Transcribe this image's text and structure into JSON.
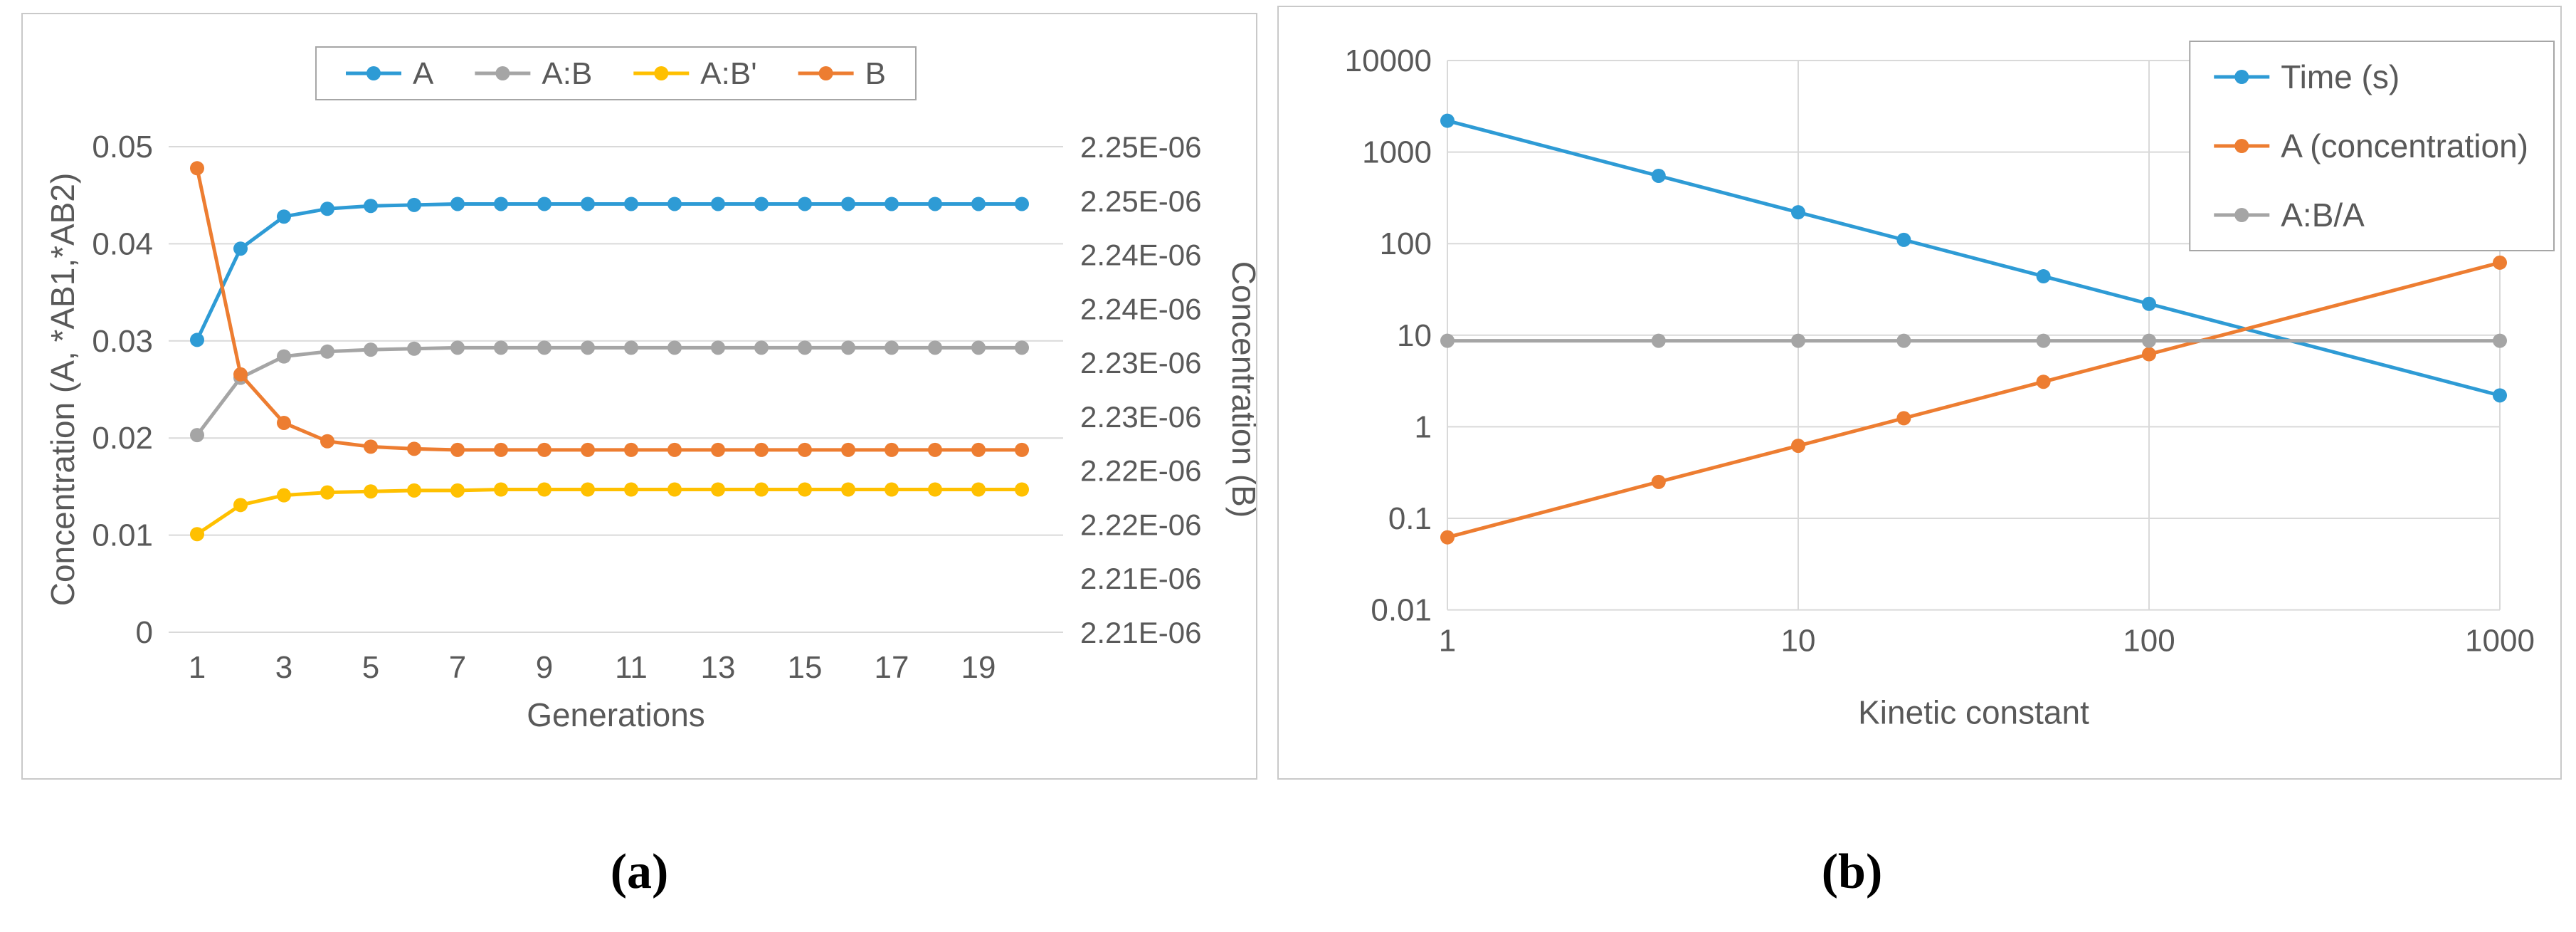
{
  "captions": {
    "a": "(a)",
    "b": "(b)"
  },
  "colors": {
    "blue": "#2E9BD5",
    "orange": "#ED7D31",
    "gray": "#A5A5A5",
    "yellow": "#FFC000",
    "text": "#595959",
    "grid": "#D9D9D9",
    "panel_border": "#C9C9C9",
    "legend_border": "#A6A6A6"
  },
  "chart_data": [
    {
      "id": "chart-a",
      "type": "line",
      "x": [
        1,
        2,
        3,
        4,
        5,
        6,
        7,
        8,
        9,
        10,
        11,
        12,
        13,
        14,
        15,
        16,
        17,
        18,
        19,
        20
      ],
      "x_ticks": [
        1,
        3,
        5,
        7,
        9,
        11,
        13,
        15,
        17,
        19
      ],
      "xlabel": "Generations",
      "grid": "horizontal",
      "legend_position": "top-center",
      "y_left": {
        "title": "Concentration (A, *AB1,*AB2)",
        "min": 0,
        "max": 0.05,
        "ticks": [
          "0.05",
          "0.04",
          "0.03",
          "0.02",
          "0.01",
          "0"
        ]
      },
      "y_right": {
        "title": "Concentration (B)",
        "min": 2.2075e-06,
        "max": 2.2525e-06,
        "ticks": [
          "2.25E-06",
          "2.25E-06",
          "2.24E-06",
          "2.24E-06",
          "2.23E-06",
          "2.23E-06",
          "2.22E-06",
          "2.22E-06",
          "2.21E-06",
          "2.21E-06"
        ]
      },
      "series": [
        {
          "name": "A",
          "color_key": "blue",
          "axis": "left",
          "values": [
            0.0301,
            0.0395,
            0.0428,
            0.0436,
            0.0439,
            0.044,
            0.0441,
            0.0441,
            0.0441,
            0.0441,
            0.0441,
            0.0441,
            0.0441,
            0.0441,
            0.0441,
            0.0441,
            0.0441,
            0.0441,
            0.0441,
            0.0441
          ]
        },
        {
          "name": "A:B",
          "color_key": "gray",
          "axis": "left",
          "values": [
            0.0203,
            0.0262,
            0.0284,
            0.0289,
            0.0291,
            0.0292,
            0.0293,
            0.0293,
            0.0293,
            0.0293,
            0.0293,
            0.0293,
            0.0293,
            0.0293,
            0.0293,
            0.0293,
            0.0293,
            0.0293,
            0.0293,
            0.0293
          ]
        },
        {
          "name": "A:B'",
          "color_key": "yellow",
          "axis": "left",
          "values": [
            0.0101,
            0.0131,
            0.0141,
            0.0144,
            0.0145,
            0.0146,
            0.0146,
            0.0147,
            0.0147,
            0.0147,
            0.0147,
            0.0147,
            0.0147,
            0.0147,
            0.0147,
            0.0147,
            0.0147,
            0.0147,
            0.0147,
            0.0147
          ]
        },
        {
          "name": "B",
          "color_key": "orange",
          "axis": "right",
          "values": [
            2.2505e-06,
            2.2314e-06,
            2.2269e-06,
            2.2252e-06,
            2.2247e-06,
            2.2245e-06,
            2.2244e-06,
            2.2244e-06,
            2.2244e-06,
            2.2244e-06,
            2.2244e-06,
            2.2244e-06,
            2.2244e-06,
            2.2244e-06,
            2.2244e-06,
            2.2244e-06,
            2.2244e-06,
            2.2244e-06,
            2.2244e-06,
            2.2244e-06
          ]
        }
      ]
    },
    {
      "id": "chart-b",
      "type": "line",
      "x_scale": "log",
      "y_scale": "log",
      "x": [
        1,
        4,
        10,
        20,
        50,
        100,
        1000
      ],
      "x_ticks": [
        1,
        10,
        100,
        1000
      ],
      "xlabel": "Kinetic constant",
      "grid": "both",
      "legend_position": "top-right",
      "y": {
        "min": 0.01,
        "max": 10000,
        "ticks": [
          "10000",
          "1000",
          "100",
          "10",
          "1",
          "0.1",
          "0.01"
        ]
      },
      "series": [
        {
          "name": "Time (s)",
          "color_key": "blue",
          "values": [
            2200,
            550,
            220,
            110,
            44,
            22,
            2.2
          ]
        },
        {
          "name": "A (concentration)",
          "color_key": "orange",
          "values": [
            0.062,
            0.25,
            0.62,
            1.24,
            3.1,
            6.2,
            62
          ]
        },
        {
          "name": "A:B/A",
          "color_key": "gray",
          "values": [
            8.7,
            8.7,
            8.7,
            8.7,
            8.7,
            8.7,
            8.7
          ]
        }
      ]
    }
  ]
}
